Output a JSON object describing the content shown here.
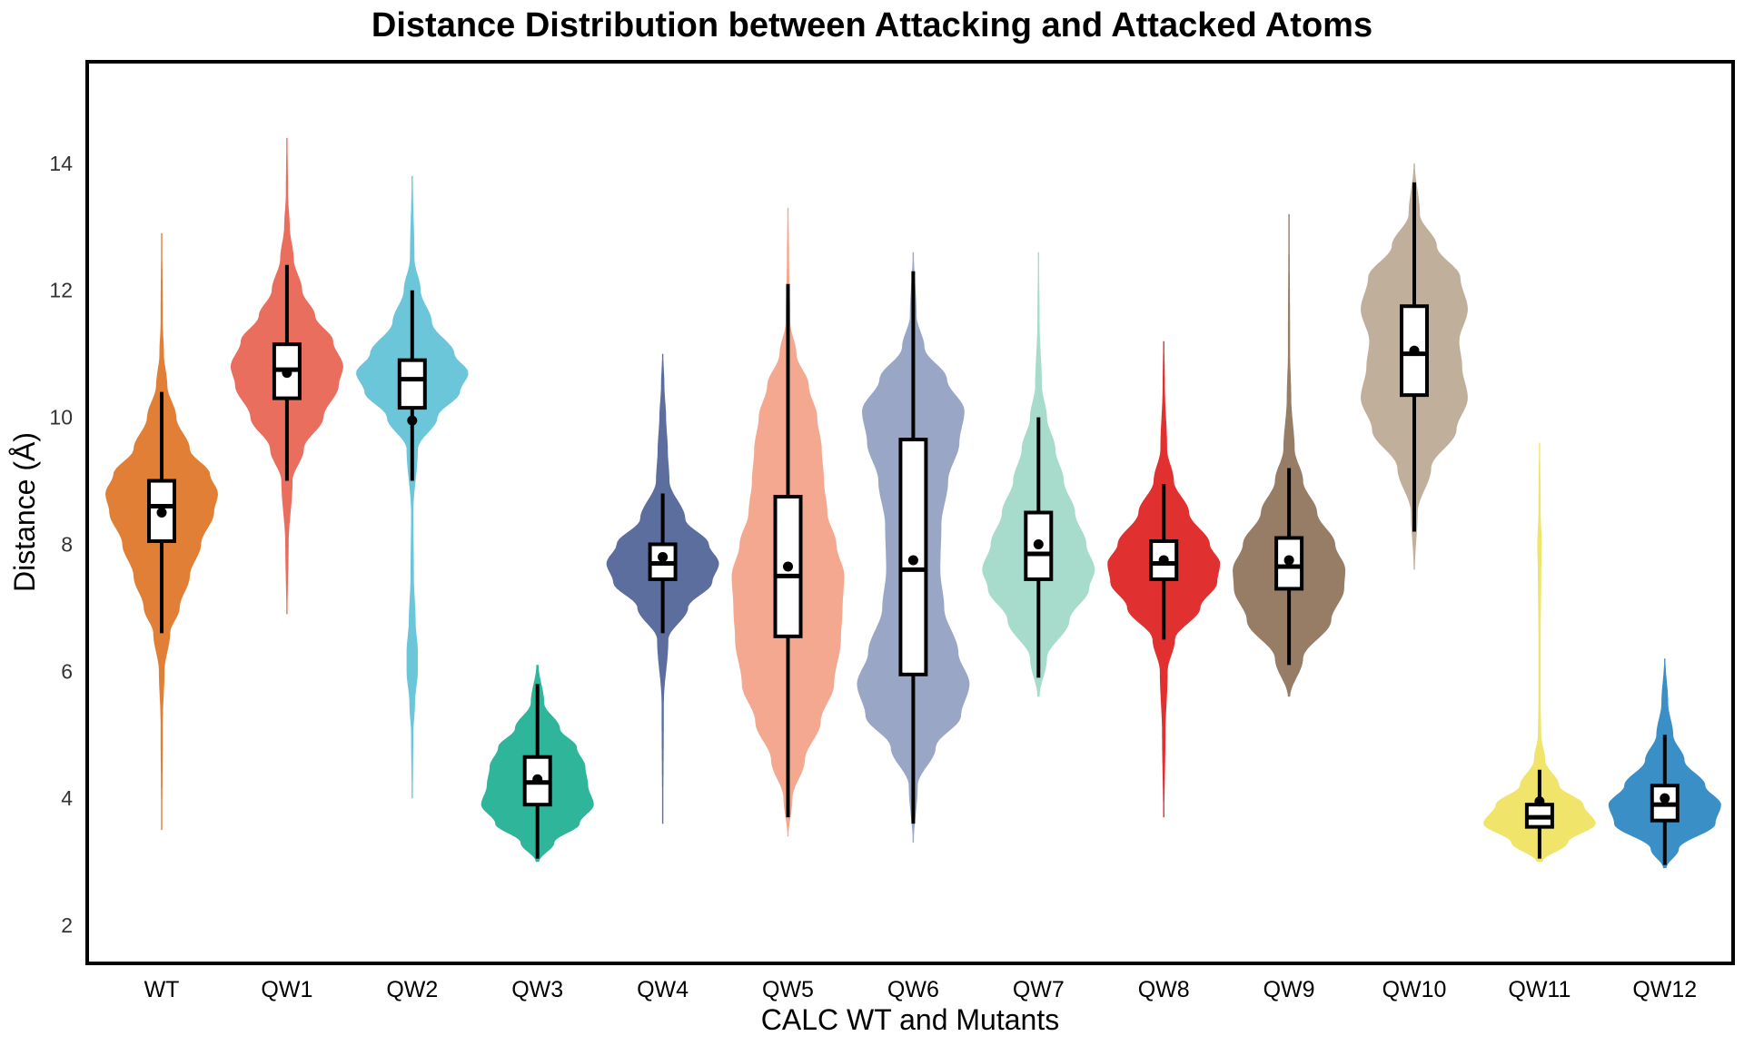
{
  "chart_data": {
    "type": "violin",
    "title": "Distance Distribution between Attacking and Attacked Atoms",
    "xlabel": "CALC WT and Mutants",
    "ylabel": "Distance (Å)",
    "ylim": [
      1.4,
      15.6
    ],
    "yticks": [
      2,
      4,
      6,
      8,
      10,
      12,
      14
    ],
    "grid": false,
    "legend": "none",
    "categories": [
      "WT",
      "QW1",
      "QW2",
      "QW3",
      "QW4",
      "QW5",
      "QW6",
      "QW7",
      "QW8",
      "QW9",
      "QW10",
      "QW11",
      "QW12"
    ],
    "series": [
      {
        "category": "WT",
        "color": "#E07F35",
        "min": 3.5,
        "max": 12.9,
        "whisker_low": 6.6,
        "whisker_high": 10.4,
        "q1": 8.05,
        "median": 8.6,
        "q3": 9.0,
        "mean": 8.5,
        "density": [
          [
            3.5,
            0.01
          ],
          [
            5.2,
            0.02
          ],
          [
            6.0,
            0.05
          ],
          [
            6.6,
            0.15
          ],
          [
            7.0,
            0.32
          ],
          [
            7.5,
            0.5
          ],
          [
            8.0,
            0.7
          ],
          [
            8.5,
            0.93
          ],
          [
            8.8,
            1.0
          ],
          [
            9.1,
            0.86
          ],
          [
            9.5,
            0.5
          ],
          [
            10.0,
            0.26
          ],
          [
            10.5,
            0.1
          ],
          [
            11.0,
            0.04
          ],
          [
            11.5,
            0.02
          ],
          [
            12.9,
            0.01
          ]
        ]
      },
      {
        "category": "QW1",
        "color": "#EA6E5E",
        "min": 6.9,
        "max": 14.4,
        "whisker_low": 9.0,
        "whisker_high": 12.4,
        "q1": 10.3,
        "median": 10.75,
        "q3": 11.15,
        "mean": 10.7,
        "density": [
          [
            6.9,
            0.01
          ],
          [
            8.0,
            0.03
          ],
          [
            9.0,
            0.1
          ],
          [
            9.5,
            0.3
          ],
          [
            10.0,
            0.65
          ],
          [
            10.5,
            0.92
          ],
          [
            10.8,
            1.0
          ],
          [
            11.2,
            0.82
          ],
          [
            11.6,
            0.5
          ],
          [
            12.0,
            0.27
          ],
          [
            12.5,
            0.12
          ],
          [
            13.0,
            0.05
          ],
          [
            13.5,
            0.02
          ],
          [
            14.4,
            0.01
          ]
        ]
      },
      {
        "category": "QW2",
        "color": "#6CC6D9",
        "min": 4.0,
        "max": 13.8,
        "whisker_low": 9.0,
        "whisker_high": 12.0,
        "q1": 10.15,
        "median": 10.6,
        "q3": 10.9,
        "mean": 9.95,
        "density": [
          [
            4.0,
            0.01
          ],
          [
            5.0,
            0.02
          ],
          [
            5.5,
            0.05
          ],
          [
            6.0,
            0.1
          ],
          [
            6.3,
            0.1
          ],
          [
            6.8,
            0.06
          ],
          [
            7.5,
            0.03
          ],
          [
            8.5,
            0.02
          ],
          [
            9.5,
            0.1
          ],
          [
            10.0,
            0.45
          ],
          [
            10.4,
            0.85
          ],
          [
            10.7,
            1.0
          ],
          [
            11.0,
            0.75
          ],
          [
            11.5,
            0.35
          ],
          [
            12.0,
            0.15
          ],
          [
            12.5,
            0.04
          ],
          [
            13.8,
            0.01
          ]
        ]
      },
      {
        "category": "QW3",
        "color": "#2FB59A",
        "min": 3.0,
        "max": 6.1,
        "whisker_low": 3.05,
        "whisker_high": 5.8,
        "q1": 3.9,
        "median": 4.25,
        "q3": 4.65,
        "mean": 4.3,
        "density": [
          [
            3.0,
            0.03
          ],
          [
            3.3,
            0.3
          ],
          [
            3.6,
            0.75
          ],
          [
            3.9,
            1.0
          ],
          [
            4.2,
            0.9
          ],
          [
            4.5,
            0.85
          ],
          [
            4.8,
            0.7
          ],
          [
            5.1,
            0.4
          ],
          [
            5.5,
            0.12
          ],
          [
            6.1,
            0.02
          ]
        ]
      },
      {
        "category": "QW4",
        "color": "#5B6E9E",
        "min": 3.6,
        "max": 11.0,
        "whisker_low": 6.6,
        "whisker_high": 8.8,
        "q1": 7.45,
        "median": 7.7,
        "q3": 8.0,
        "mean": 7.8,
        "density": [
          [
            3.6,
            0.01
          ],
          [
            5.5,
            0.02
          ],
          [
            6.5,
            0.1
          ],
          [
            7.0,
            0.45
          ],
          [
            7.4,
            0.88
          ],
          [
            7.7,
            1.0
          ],
          [
            8.0,
            0.82
          ],
          [
            8.4,
            0.4
          ],
          [
            9.0,
            0.12
          ],
          [
            9.5,
            0.09
          ],
          [
            10.0,
            0.06
          ],
          [
            10.5,
            0.03
          ],
          [
            11.0,
            0.01
          ]
        ]
      },
      {
        "category": "QW5",
        "color": "#F3A88F",
        "min": 3.4,
        "max": 13.3,
        "whisker_low": 3.7,
        "whisker_high": 12.1,
        "q1": 6.55,
        "median": 7.5,
        "q3": 8.75,
        "mean": 7.65,
        "density": [
          [
            3.4,
            0.01
          ],
          [
            4.0,
            0.08
          ],
          [
            4.6,
            0.3
          ],
          [
            5.2,
            0.58
          ],
          [
            5.8,
            0.82
          ],
          [
            6.5,
            0.94
          ],
          [
            7.0,
            0.97
          ],
          [
            7.5,
            1.0
          ],
          [
            8.0,
            0.86
          ],
          [
            8.5,
            0.7
          ],
          [
            9.0,
            0.64
          ],
          [
            9.5,
            0.6
          ],
          [
            10.0,
            0.52
          ],
          [
            10.5,
            0.37
          ],
          [
            11.0,
            0.15
          ],
          [
            11.5,
            0.04
          ],
          [
            12.5,
            0.02
          ],
          [
            13.3,
            0.01
          ]
        ]
      },
      {
        "category": "QW6",
        "color": "#9AA6C6",
        "min": 3.3,
        "max": 12.6,
        "whisker_low": 3.6,
        "whisker_high": 12.3,
        "q1": 5.95,
        "median": 7.6,
        "q3": 9.65,
        "mean": 7.75,
        "density": [
          [
            3.3,
            0.01
          ],
          [
            4.2,
            0.08
          ],
          [
            4.8,
            0.4
          ],
          [
            5.3,
            0.85
          ],
          [
            5.8,
            1.0
          ],
          [
            6.3,
            0.8
          ],
          [
            7.0,
            0.55
          ],
          [
            7.6,
            0.48
          ],
          [
            8.3,
            0.5
          ],
          [
            9.0,
            0.62
          ],
          [
            9.6,
            0.82
          ],
          [
            10.1,
            0.91
          ],
          [
            10.6,
            0.6
          ],
          [
            11.1,
            0.2
          ],
          [
            11.6,
            0.06
          ],
          [
            12.6,
            0.01
          ]
        ]
      },
      {
        "category": "QW7",
        "color": "#A7DCCC",
        "min": 5.6,
        "max": 12.6,
        "whisker_low": 5.9,
        "whisker_high": 10.0,
        "q1": 7.45,
        "median": 7.85,
        "q3": 8.5,
        "mean": 8.0,
        "density": [
          [
            5.6,
            0.02
          ],
          [
            6.2,
            0.15
          ],
          [
            6.8,
            0.55
          ],
          [
            7.3,
            0.9
          ],
          [
            7.6,
            1.0
          ],
          [
            8.0,
            0.85
          ],
          [
            8.5,
            0.65
          ],
          [
            9.0,
            0.45
          ],
          [
            9.5,
            0.3
          ],
          [
            10.0,
            0.15
          ],
          [
            10.5,
            0.06
          ],
          [
            11.5,
            0.02
          ],
          [
            12.6,
            0.01
          ]
        ]
      },
      {
        "category": "QW8",
        "color": "#E03030",
        "min": 3.7,
        "max": 11.2,
        "whisker_low": 6.5,
        "whisker_high": 8.95,
        "q1": 7.45,
        "median": 7.7,
        "q3": 8.05,
        "mean": 7.75,
        "density": [
          [
            3.7,
            0.01
          ],
          [
            5.0,
            0.03
          ],
          [
            6.0,
            0.07
          ],
          [
            6.5,
            0.2
          ],
          [
            7.0,
            0.65
          ],
          [
            7.4,
            0.95
          ],
          [
            7.7,
            1.0
          ],
          [
            8.0,
            0.82
          ],
          [
            8.5,
            0.45
          ],
          [
            9.0,
            0.18
          ],
          [
            9.5,
            0.06
          ],
          [
            10.5,
            0.02
          ],
          [
            11.2,
            0.01
          ]
        ]
      },
      {
        "category": "QW9",
        "color": "#977C66",
        "min": 5.6,
        "max": 13.2,
        "whisker_low": 6.1,
        "whisker_high": 9.2,
        "q1": 7.3,
        "median": 7.65,
        "q3": 8.1,
        "mean": 7.75,
        "density": [
          [
            5.6,
            0.02
          ],
          [
            6.2,
            0.25
          ],
          [
            6.8,
            0.75
          ],
          [
            7.3,
            0.98
          ],
          [
            7.6,
            1.0
          ],
          [
            8.0,
            0.82
          ],
          [
            8.5,
            0.5
          ],
          [
            9.0,
            0.25
          ],
          [
            9.5,
            0.1
          ],
          [
            10.3,
            0.04
          ],
          [
            11.0,
            0.02
          ],
          [
            13.2,
            0.01
          ]
        ]
      },
      {
        "category": "QW10",
        "color": "#BFAF9B",
        "min": 7.6,
        "max": 14.0,
        "whisker_low": 8.2,
        "whisker_high": 13.7,
        "q1": 10.35,
        "median": 11.0,
        "q3": 11.75,
        "mean": 11.05,
        "density": [
          [
            7.6,
            0.01
          ],
          [
            8.5,
            0.06
          ],
          [
            9.2,
            0.3
          ],
          [
            9.8,
            0.75
          ],
          [
            10.3,
            0.95
          ],
          [
            10.8,
            0.85
          ],
          [
            11.2,
            0.8
          ],
          [
            11.7,
            0.95
          ],
          [
            12.2,
            0.82
          ],
          [
            12.7,
            0.4
          ],
          [
            13.2,
            0.1
          ],
          [
            14.0,
            0.01
          ]
        ]
      },
      {
        "category": "QW11",
        "color": "#F0E46A",
        "min": 3.0,
        "max": 9.6,
        "whisker_low": 3.05,
        "whisker_high": 4.45,
        "q1": 3.55,
        "median": 3.7,
        "q3": 3.9,
        "mean": 3.95,
        "density": [
          [
            3.0,
            0.05
          ],
          [
            3.3,
            0.5
          ],
          [
            3.6,
            1.0
          ],
          [
            3.9,
            0.78
          ],
          [
            4.2,
            0.35
          ],
          [
            4.6,
            0.1
          ],
          [
            5.0,
            0.03
          ],
          [
            5.5,
            0.02
          ],
          [
            6.5,
            0.02
          ],
          [
            7.5,
            0.03
          ],
          [
            8.0,
            0.04
          ],
          [
            8.5,
            0.02
          ],
          [
            9.6,
            0.01
          ]
        ]
      },
      {
        "category": "QW12",
        "color": "#3A8FC6",
        "min": 2.9,
        "max": 6.2,
        "whisker_low": 2.95,
        "whisker_high": 5.0,
        "q1": 3.65,
        "median": 3.9,
        "q3": 4.2,
        "mean": 4.0,
        "density": [
          [
            2.9,
            0.03
          ],
          [
            3.2,
            0.25
          ],
          [
            3.6,
            0.9
          ],
          [
            3.9,
            1.0
          ],
          [
            4.2,
            0.72
          ],
          [
            4.6,
            0.35
          ],
          [
            5.0,
            0.15
          ],
          [
            5.5,
            0.06
          ],
          [
            6.2,
            0.01
          ]
        ]
      }
    ]
  }
}
